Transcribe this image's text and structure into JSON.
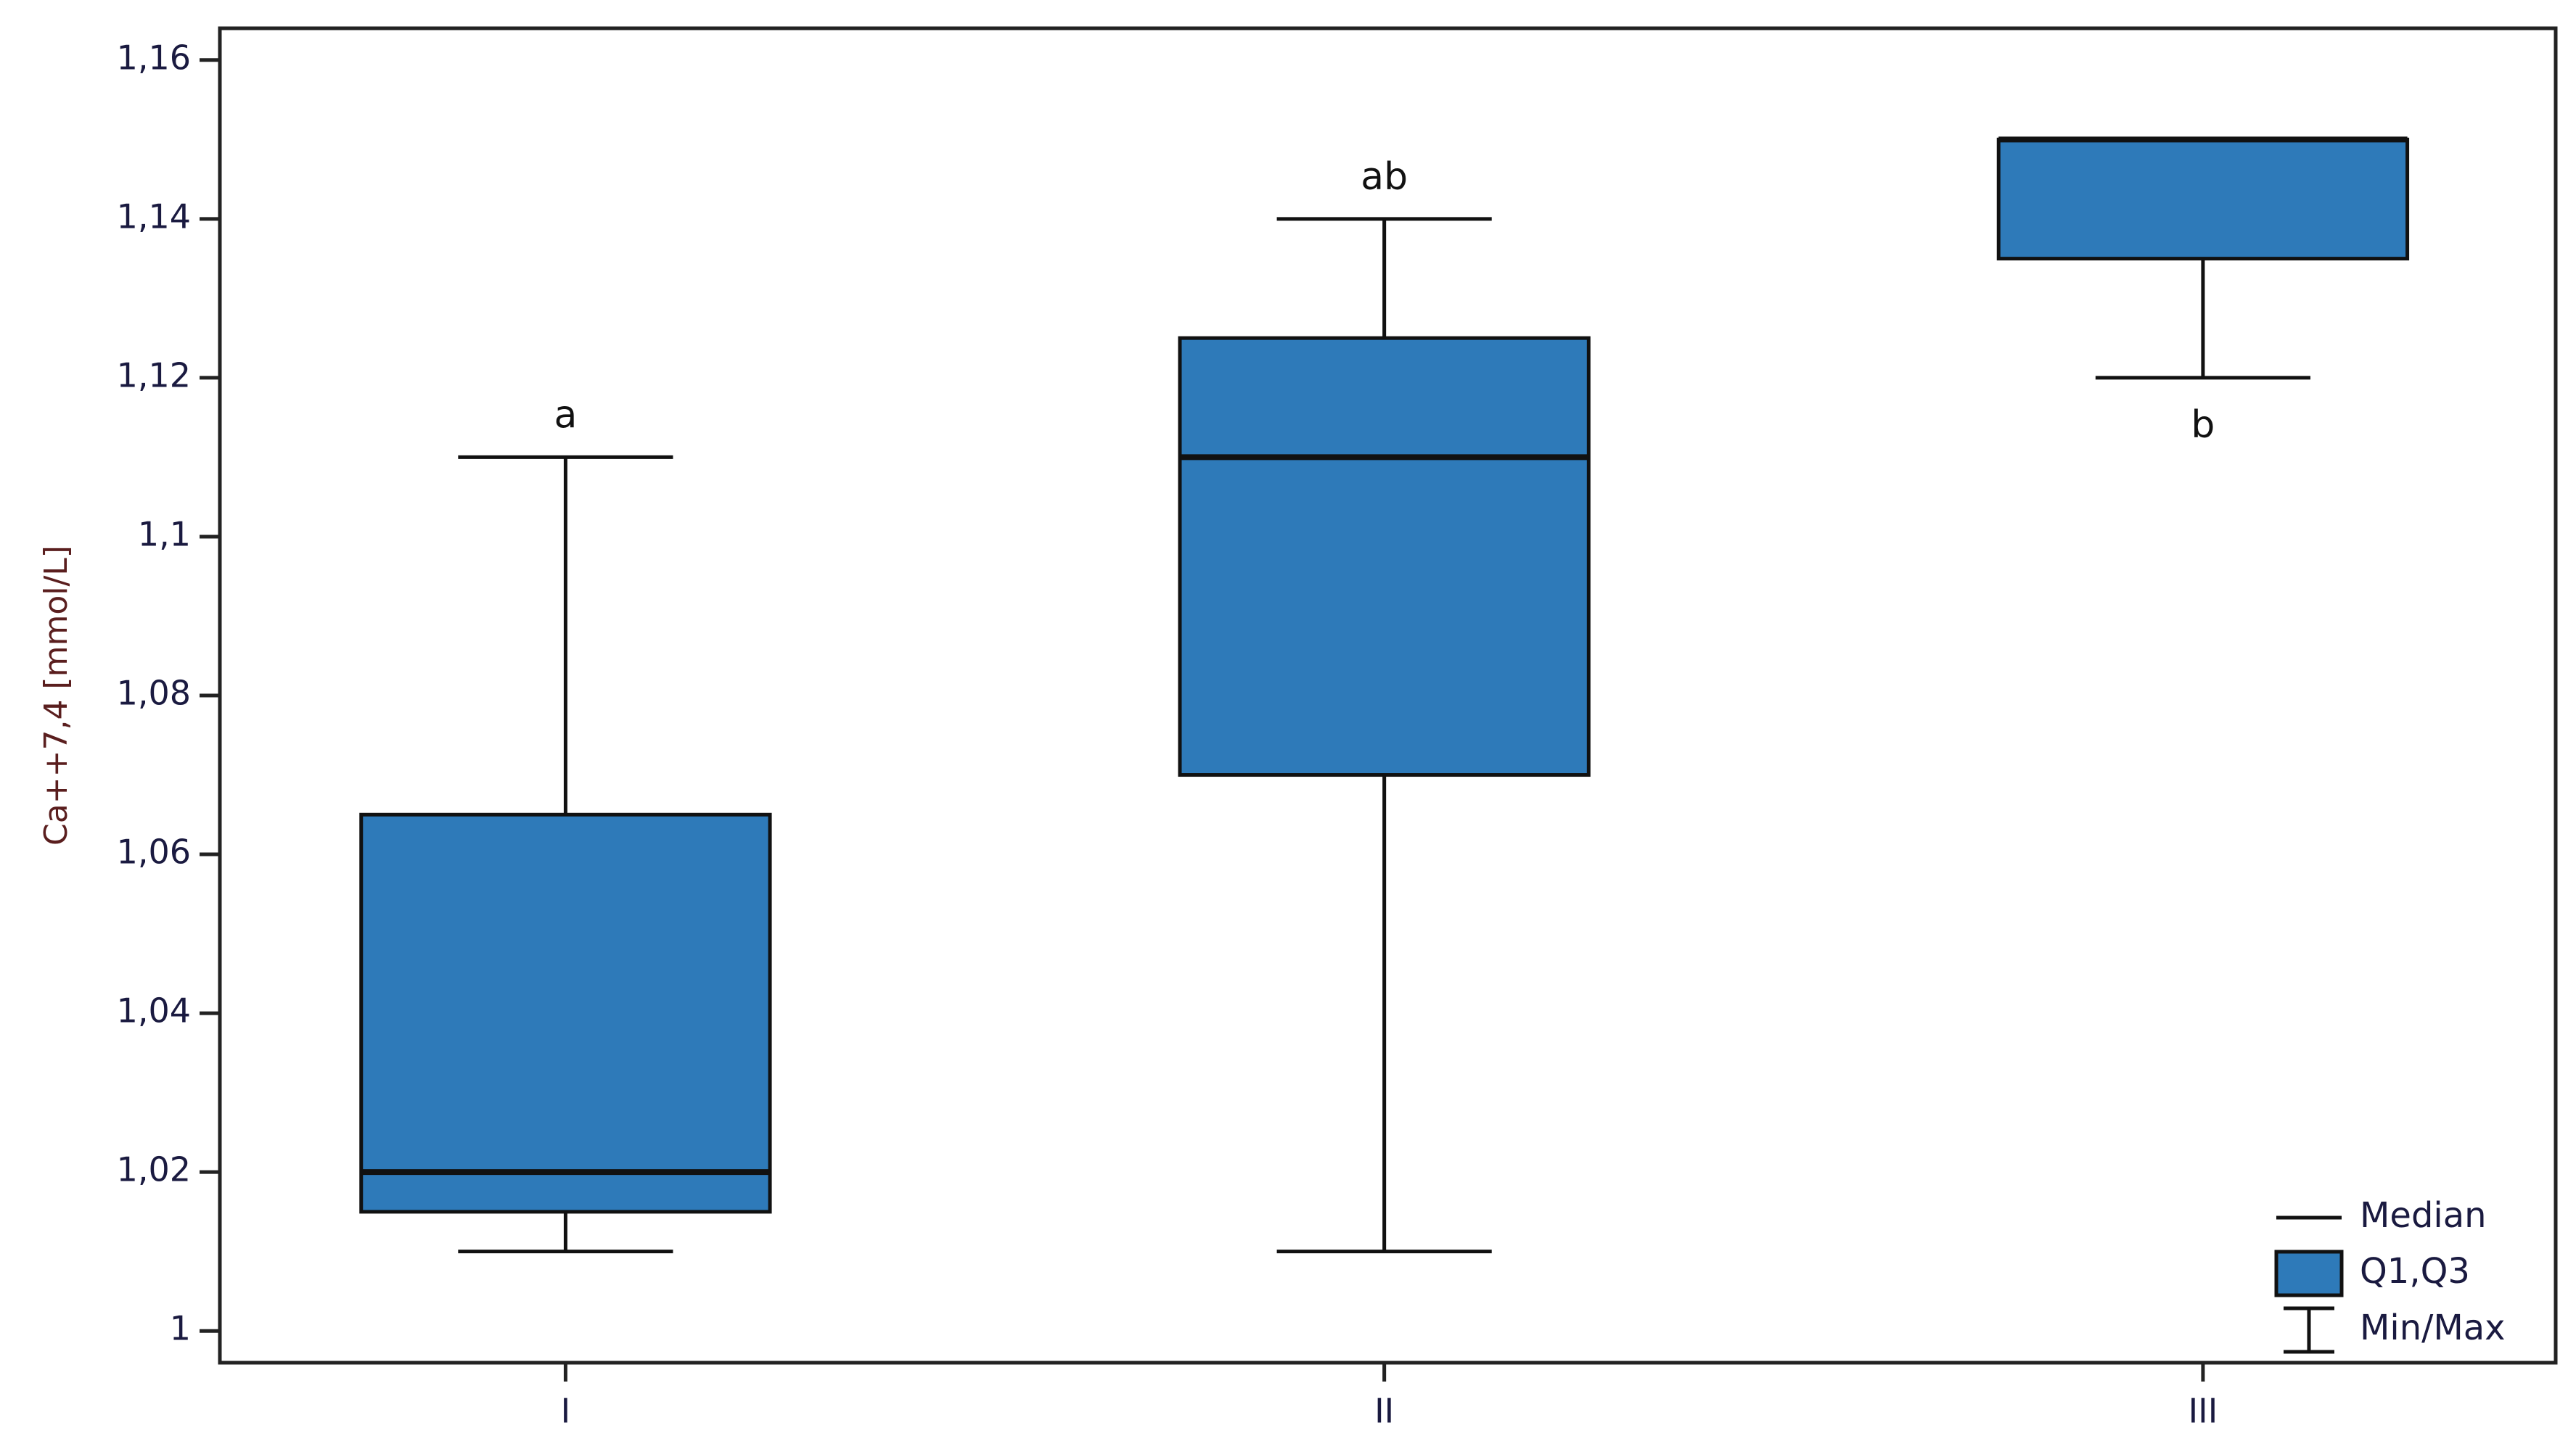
{
  "chart_data": {
    "type": "box",
    "ylabel": "Ca++7,4 [mmol/L]",
    "categories": [
      "I",
      "II",
      "III"
    ],
    "min": [
      1.01,
      1.01,
      1.12
    ],
    "q1": [
      1.015,
      1.07,
      1.135
    ],
    "median": [
      1.02,
      1.11,
      1.15
    ],
    "q3": [
      1.065,
      1.125,
      1.15
    ],
    "max": [
      1.11,
      1.14,
      1.15
    ],
    "annotations": [
      "a",
      "ab",
      "b"
    ],
    "color": "#2e7ab9",
    "ylim": [
      0.996,
      1.164
    ],
    "yticks": [
      1,
      {
        "value": 1.02,
        "label": "1,02"
      },
      {
        "value": 1.04,
        "label": "1,04"
      },
      {
        "value": 1.06,
        "label": "1,06"
      },
      {
        "value": 1.08,
        "label": "1,08"
      },
      {
        "value": 1.1,
        "label": "1,1"
      },
      {
        "value": 1.12,
        "label": "1,12"
      },
      {
        "value": 1.14,
        "label": "1,14"
      },
      {
        "value": 1.16,
        "label": "1,16"
      }
    ],
    "legend": [
      "Median",
      "Q1,Q3",
      "Min/Max"
    ],
    "legend_position": "lower right"
  }
}
